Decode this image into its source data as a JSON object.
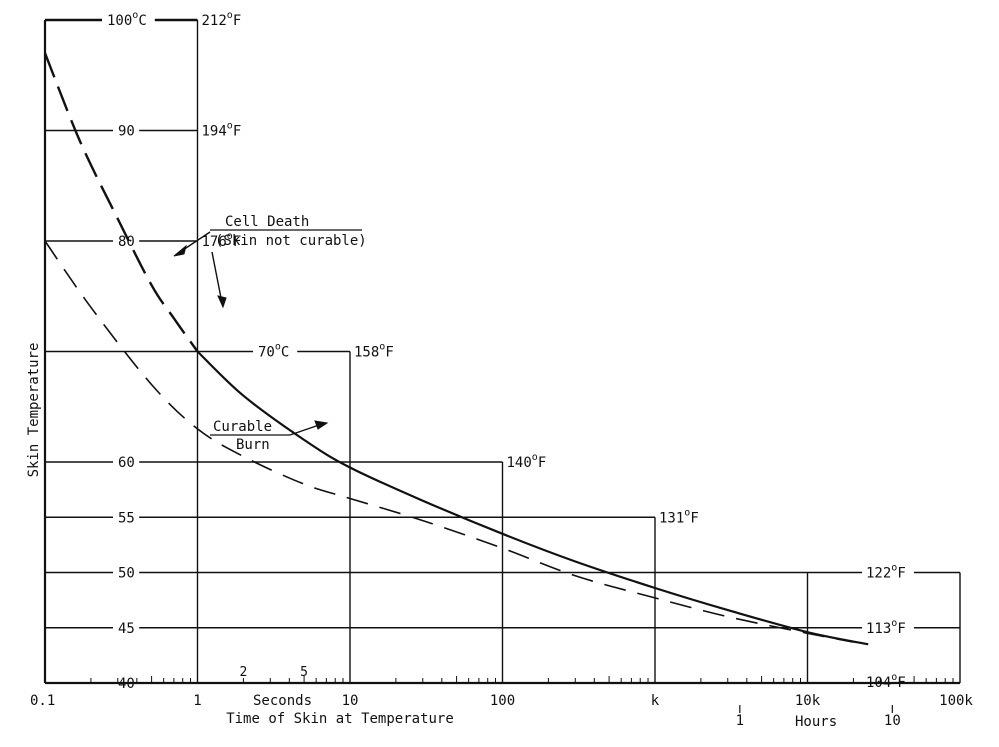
{
  "chart_data": {
    "type": "line",
    "xscale": "log",
    "xlim": [
      0.1,
      100000
    ],
    "ylim": [
      40,
      100
    ],
    "xlabel": "Time of Skin at Temperature",
    "ylabel": "Skin Temperature",
    "x_ticks": [
      {
        "x": 0.1,
        "label": "0.1"
      },
      {
        "x": 1,
        "label": "1"
      },
      {
        "x": 10,
        "label": "10"
      },
      {
        "x": 100,
        "label": "100"
      },
      {
        "x": 1000,
        "label": "k"
      },
      {
        "x": 10000,
        "label": "10k"
      },
      {
        "x": 100000,
        "label": "100k"
      }
    ],
    "x_minor_labels": [
      {
        "x": 2,
        "label": "2"
      },
      {
        "x": 5,
        "label": "5"
      }
    ],
    "x_unit_labels": {
      "seconds": "Seconds",
      "hours": "Hours"
    },
    "hour_ticks": [
      {
        "x": 3600,
        "label": "1"
      },
      {
        "x": 36000,
        "label": "10"
      }
    ],
    "temperature_rows": [
      {
        "y": 100,
        "celsius": "100",
        "c_unit": "C",
        "fahrenheit": "212",
        "x_end": 1
      },
      {
        "y": 90,
        "celsius": "90",
        "c_unit": "",
        "fahrenheit": "194",
        "x_end": 1
      },
      {
        "y": 80,
        "celsius": "80",
        "c_unit": "",
        "fahrenheit": "176",
        "x_end": 1
      },
      {
        "y": 70,
        "celsius": "70",
        "c_unit": "C",
        "fahrenheit": "158",
        "x_end": 10
      },
      {
        "y": 60,
        "celsius": "60",
        "c_unit": "",
        "fahrenheit": "140",
        "x_end": 100
      },
      {
        "y": 55,
        "celsius": "55",
        "c_unit": "",
        "fahrenheit": "131",
        "x_end": 1000
      },
      {
        "y": 50,
        "celsius": "50",
        "c_unit": "",
        "fahrenheit": "122",
        "x_end": 100000
      },
      {
        "y": 45,
        "celsius": "45",
        "c_unit": "",
        "fahrenheit": "113",
        "x_end": 100000
      },
      {
        "y": 40,
        "celsius": "40",
        "c_unit": "",
        "fahrenheit": "104",
        "x_end": 100000
      }
    ],
    "degree_symbol": "o",
    "fahrenheit_unit": "F",
    "series": [
      {
        "key": "cell-death",
        "style": "solid-then-dashed",
        "points": [
          {
            "x": 0.1,
            "y": 97
          },
          {
            "x": 0.17,
            "y": 89
          },
          {
            "x": 0.3,
            "y": 82
          },
          {
            "x": 0.5,
            "y": 76
          },
          {
            "x": 0.7,
            "y": 73
          },
          {
            "x": 1,
            "y": 70
          },
          {
            "x": 2,
            "y": 66
          },
          {
            "x": 5,
            "y": 62
          },
          {
            "x": 10,
            "y": 59.5
          },
          {
            "x": 30,
            "y": 56.5
          },
          {
            "x": 100,
            "y": 53.5
          },
          {
            "x": 300,
            "y": 51
          },
          {
            "x": 1000,
            "y": 48.6
          },
          {
            "x": 3000,
            "y": 46.6
          },
          {
            "x": 10000,
            "y": 44.6
          },
          {
            "x": 25000,
            "y": 43.5
          }
        ]
      },
      {
        "key": "curable-burn",
        "style": "dashed",
        "points": [
          {
            "x": 0.1,
            "y": 80
          },
          {
            "x": 0.2,
            "y": 74
          },
          {
            "x": 0.5,
            "y": 67
          },
          {
            "x": 1,
            "y": 63
          },
          {
            "x": 2,
            "y": 60.5
          },
          {
            "x": 5,
            "y": 58
          },
          {
            "x": 10,
            "y": 56.7
          },
          {
            "x": 30,
            "y": 54.7
          },
          {
            "x": 100,
            "y": 52.2
          },
          {
            "x": 300,
            "y": 49.7
          },
          {
            "x": 1000,
            "y": 47.7
          },
          {
            "x": 3000,
            "y": 46
          },
          {
            "x": 10000,
            "y": 44.5
          },
          {
            "x": 20000,
            "y": 43.7
          }
        ]
      }
    ],
    "annotations": [
      {
        "key": "cell-death-title",
        "text": "Cell Death"
      },
      {
        "key": "cell-death-sub",
        "text": "(Skin not curable)"
      },
      {
        "key": "curable-line1",
        "text": "Curable"
      },
      {
        "key": "curable-line2",
        "text": "Burn"
      }
    ]
  }
}
